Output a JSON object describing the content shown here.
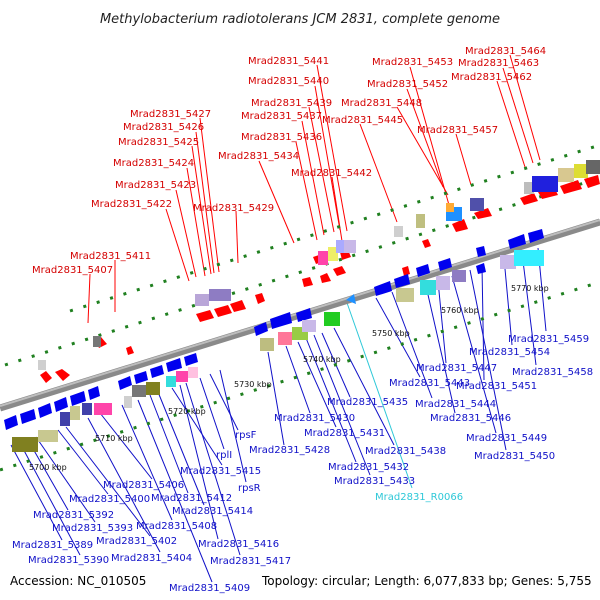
{
  "title": "Methylobacterium radiotolerans JCM 2831, complete genome",
  "accession": "Accession: NC_010505",
  "topology": "Topology: circular; Length: 6,077,833 bp; Genes: 5,755",
  "kbp_labels": [
    "5700 kbp",
    "5710 kbp",
    "5720 kbp",
    "5730 kbp",
    "5740 kbp",
    "5750 kbp",
    "5760 kbp",
    "5770 kbp"
  ],
  "top_labels": [
    "Mrad2831_5407",
    "Mrad2831_5411",
    "Mrad2831_5422",
    "Mrad2831_5423",
    "Mrad2831_5424",
    "Mrad2831_5425",
    "Mrad2831_5426",
    "Mrad2831_5427",
    "Mrad2831_5429",
    "Mrad2831_5434",
    "Mrad2831_5436",
    "Mrad2831_5437",
    "Mrad2831_5439",
    "Mrad2831_5440",
    "Mrad2831_5441",
    "Mrad2831_5442",
    "Mrad2831_5445",
    "Mrad2831_5448",
    "Mrad2831_5452",
    "Mrad2831_5453",
    "Mrad2831_5457",
    "Mrad2831_5462",
    "Mrad2831_5463",
    "Mrad2831_5464"
  ],
  "bottom_labels": [
    "Mrad2831_5389",
    "Mrad2831_5390",
    "Mrad2831_5392",
    "Mrad2831_5393",
    "Mrad2831_5400",
    "Mrad2831_5402",
    "Mrad2831_5404",
    "Mrad2831_5406",
    "Mrad2831_5408",
    "Mrad2831_5409",
    "Mrad2831_5412",
    "Mrad2831_5414",
    "Mrad2831_5415",
    "Mrad2831_5416",
    "Mrad2831_5417",
    "rplI",
    "rpsF",
    "rpsR",
    "Mrad2831_5428",
    "Mrad2831_5430",
    "Mrad2831_5431",
    "Mrad2831_5432",
    "Mrad2831_5433",
    "Mrad2831_5435",
    "Mrad2831_5438",
    "Mrad2831_5443",
    "Mrad2831_5444",
    "Mrad2831_5446",
    "Mrad2831_5447",
    "Mrad2831_5449",
    "Mrad2831_5450",
    "Mrad2831_5451",
    "Mrad2831_5454",
    "Mrad2831_5458",
    "Mrad2831_5459"
  ],
  "rna_label": "Mrad2831_R0066",
  "colors": {
    "forward": "#ff0000",
    "reverse": "#0000ee",
    "label_forward": "#d40000",
    "label_reverse": "#1010c8",
    "label_rna": "#2ec8d8",
    "tick": "#208020",
    "backbone": "#808080"
  }
}
